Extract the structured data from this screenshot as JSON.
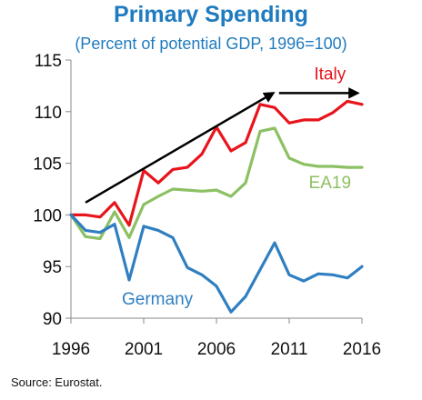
{
  "chart_data": {
    "type": "line",
    "title": "Primary Spending",
    "subtitle": "(Percent of potential GDP, 1996=100)",
    "source": "Source: Eurostat.",
    "x": [
      1996,
      1997,
      1998,
      1999,
      2000,
      2001,
      2002,
      2003,
      2004,
      2005,
      2006,
      2007,
      2008,
      2009,
      2010,
      2011,
      2012,
      2013,
      2014,
      2015,
      2016
    ],
    "xlim": [
      1996,
      2016
    ],
    "ylim": [
      90,
      115
    ],
    "xticks": [
      1996,
      2001,
      2006,
      2011,
      2016
    ],
    "yticks": [
      90,
      95,
      100,
      105,
      110,
      115
    ],
    "grid": false,
    "series": [
      {
        "name": "Italy",
        "color": "#e8141c",
        "values": [
          100,
          100,
          99.8,
          101.2,
          99,
          104.3,
          103.1,
          104.4,
          104.6,
          105.9,
          108.5,
          106.2,
          107.0,
          110.7,
          110.4,
          108.9,
          109.2,
          109.2,
          109.9,
          111.0,
          110.7
        ]
      },
      {
        "name": "EA19",
        "color": "#8cc063",
        "values": [
          100,
          97.9,
          97.7,
          100.3,
          97.8,
          101.0,
          101.8,
          102.5,
          102.4,
          102.3,
          102.4,
          101.8,
          103.1,
          108.1,
          108.4,
          105.5,
          104.9,
          104.7,
          104.7,
          104.6,
          104.6
        ]
      },
      {
        "name": "Germany",
        "color": "#2f7fc2",
        "values": [
          100,
          98.5,
          98.3,
          99.1,
          93.7,
          98.9,
          98.5,
          97.8,
          94.9,
          94.2,
          93.1,
          90.6,
          92.1,
          94.7,
          97.3,
          94.2,
          93.6,
          94.3,
          94.2,
          93.9,
          95.0
        ]
      }
    ],
    "annotations": [
      {
        "type": "arrow",
        "from": [
          1997,
          101.2
        ],
        "to": [
          2009.9,
          111.8
        ]
      },
      {
        "type": "arrow",
        "from": [
          2010.3,
          111.8
        ],
        "to": [
          2015.7,
          111.8
        ]
      }
    ]
  }
}
